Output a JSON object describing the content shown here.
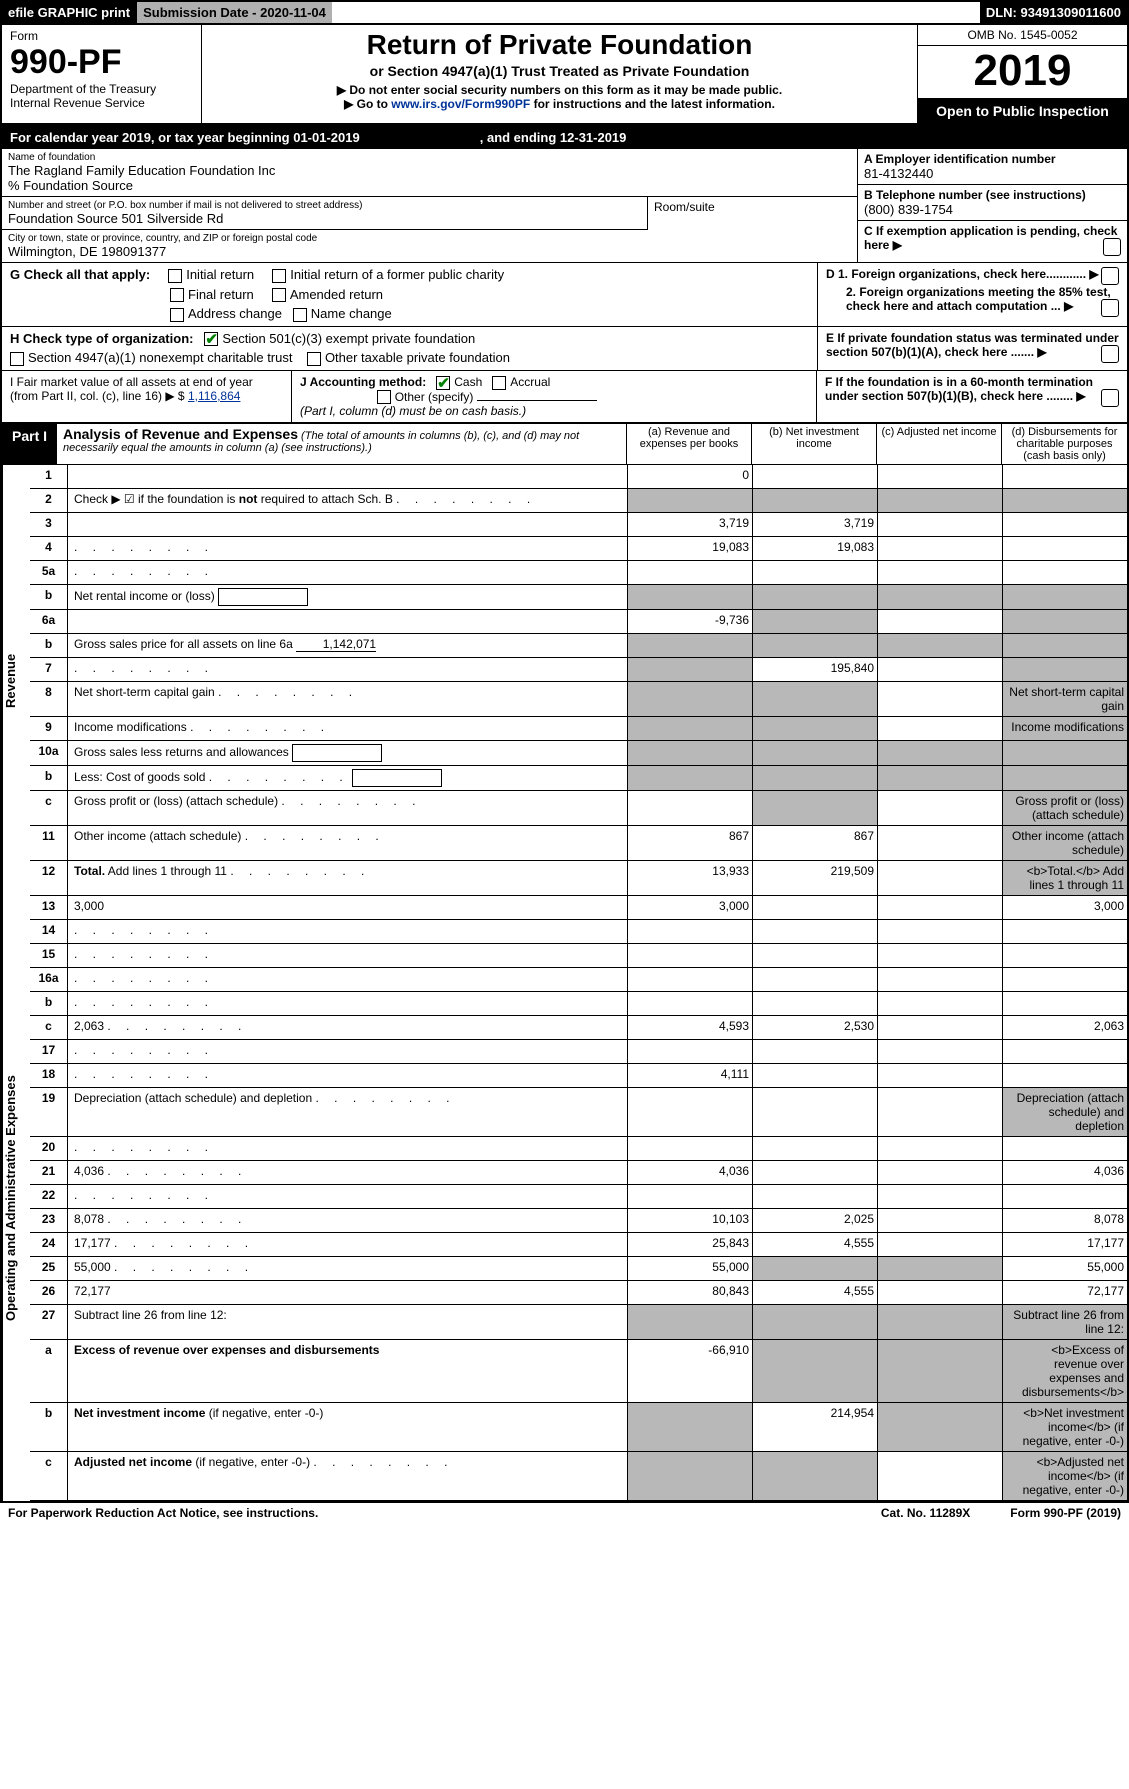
{
  "top": {
    "efile": "efile GRAPHIC print",
    "subdate": "Submission Date - 2020-11-04",
    "dln": "DLN: 93491309011600"
  },
  "hdr": {
    "form": "Form",
    "formno": "990-PF",
    "dept": "Department of the Treasury",
    "irs": "Internal Revenue Service",
    "title": "Return of Private Foundation",
    "sub": "or Section 4947(a)(1) Trust Treated as Private Foundation",
    "note1": "▶ Do not enter social security numbers on this form as it may be made public.",
    "note2": "▶ Go to ",
    "link": "www.irs.gov/Form990PF",
    "note2b": " for instructions and the latest information.",
    "omb": "OMB No. 1545-0052",
    "year": "2019",
    "open": "Open to Public Inspection"
  },
  "cal": {
    "a": "For calendar year 2019, or tax year beginning 01-01-2019",
    "b": ", and ending 12-31-2019"
  },
  "info": {
    "name_lbl": "Name of foundation",
    "name": "The Ragland Family Education Foundation Inc",
    "pct": "% Foundation Source",
    "addr_lbl": "Number and street (or P.O. box number if mail is not delivered to street address)",
    "addr": "Foundation Source 501 Silverside Rd",
    "room": "Room/suite",
    "city_lbl": "City or town, state or province, country, and ZIP or foreign postal code",
    "city": "Wilmington, DE  198091377",
    "a_lbl": "A Employer identification number",
    "a_val": "81-4132440",
    "b_lbl": "B Telephone number (see instructions)",
    "b_val": "(800) 839-1754",
    "c_lbl": "C If exemption application is pending, check here",
    "d1": "D 1. Foreign organizations, check here............",
    "d2": "2. Foreign organizations meeting the 85% test, check here and attach computation ...",
    "e": "E  If private foundation status was terminated under section 507(b)(1)(A), check here .......",
    "f": "F  If the foundation is in a 60-month termination under section 507(b)(1)(B), check here ........"
  },
  "g": {
    "lbl": "G Check all that apply:",
    "o1": "Initial return",
    "o2": "Initial return of a former public charity",
    "o3": "Final return",
    "o4": "Amended return",
    "o5": "Address change",
    "o6": "Name change"
  },
  "h": {
    "lbl": "H Check type of organization:",
    "o1": "Section 501(c)(3) exempt private foundation",
    "o2": "Section 4947(a)(1) nonexempt charitable trust",
    "o3": "Other taxable private foundation"
  },
  "i": {
    "lbl": "I Fair market value of all assets at end of year (from Part II, col. (c), line 16) ▶ $",
    "val": "1,116,864"
  },
  "j": {
    "lbl": "J Accounting method:",
    "cash": "Cash",
    "acc": "Accrual",
    "other": "Other (specify)",
    "note": "(Part I, column (d) must be on cash basis.)"
  },
  "p1": {
    "lbl": "Part I",
    "t": "Analysis of Revenue and Expenses",
    "sub": " (The total of amounts in columns (b), (c), and (d) may not necessarily equal the amounts in column (a) (see instructions).)",
    "ca": "(a)   Revenue and expenses per books",
    "cb": "(b)   Net investment income",
    "cc": "(c)  Adjusted net income",
    "cd": "(d)  Disbursements for charitable purposes (cash basis only)"
  },
  "side": {
    "rev": "Revenue",
    "exp": "Operating and Administrative Expenses"
  },
  "rows_rev": [
    {
      "n": "1",
      "d": "",
      "a": "0",
      "b": "",
      "c": ""
    },
    {
      "n": "2",
      "d": "Check ▶ ☑ if the foundation is <b>not</b> required to attach Sch. B",
      "dots": true,
      "nocol": true
    },
    {
      "n": "3",
      "d": "",
      "a": "3,719",
      "b": "3,719",
      "c": ""
    },
    {
      "n": "4",
      "d": "",
      "dots": true,
      "a": "19,083",
      "b": "19,083",
      "c": ""
    },
    {
      "n": "5a",
      "d": "",
      "dots": true,
      "a": "",
      "b": "",
      "c": ""
    },
    {
      "n": "b",
      "d": "Net rental income or (loss)",
      "box": true,
      "nocol": true
    },
    {
      "n": "6a",
      "d": "",
      "a": "-9,736",
      "b": "",
      "c": "",
      "bshade": true,
      "dshade": true
    },
    {
      "n": "b",
      "d": "Gross sales price for all assets on line 6a",
      "boxval": "1,142,071",
      "nocol": true
    },
    {
      "n": "7",
      "d": "",
      "dots": true,
      "ashade": true,
      "b": "195,840",
      "c": "",
      "dshade": true
    },
    {
      "n": "8",
      "d": "Net short-term capital gain",
      "dots": true,
      "ashade": true,
      "bshade": true,
      "c": "",
      "dshade": true
    },
    {
      "n": "9",
      "d": "Income modifications",
      "dots": true,
      "ashade": true,
      "bshade": true,
      "c": "",
      "dshade": true
    },
    {
      "n": "10a",
      "d": "Gross sales less returns and allowances",
      "box": true,
      "nocol": true
    },
    {
      "n": "b",
      "d": "Less: Cost of goods sold",
      "dots": true,
      "box": true,
      "nocol": true
    },
    {
      "n": "c",
      "d": "Gross profit or (loss) (attach schedule)",
      "dots": true,
      "a": "",
      "bshade": true,
      "c": "",
      "dshade": true
    },
    {
      "n": "11",
      "d": "Other income (attach schedule)",
      "dots": true,
      "a": "867",
      "b": "867",
      "c": "",
      "dshade": true
    },
    {
      "n": "12",
      "d": "<b>Total.</b> Add lines 1 through 11",
      "dots": true,
      "a": "13,933",
      "b": "219,509",
      "c": "",
      "dshade": true
    }
  ],
  "rows_exp": [
    {
      "n": "13",
      "d": "3,000",
      "a": "3,000",
      "b": "",
      "c": ""
    },
    {
      "n": "14",
      "d": "",
      "dots": true,
      "a": "",
      "b": "",
      "c": ""
    },
    {
      "n": "15",
      "d": "",
      "dots": true,
      "a": "",
      "b": "",
      "c": ""
    },
    {
      "n": "16a",
      "d": "",
      "dots": true,
      "a": "",
      "b": "",
      "c": ""
    },
    {
      "n": "b",
      "d": "",
      "dots": true,
      "a": "",
      "b": "",
      "c": ""
    },
    {
      "n": "c",
      "d": "2,063",
      "dots": true,
      "a": "4,593",
      "b": "2,530",
      "c": ""
    },
    {
      "n": "17",
      "d": "",
      "dots": true,
      "a": "",
      "b": "",
      "c": ""
    },
    {
      "n": "18",
      "d": "",
      "dots": true,
      "a": "4,111",
      "b": "",
      "c": ""
    },
    {
      "n": "19",
      "d": "Depreciation (attach schedule) and depletion",
      "dots": true,
      "a": "",
      "b": "",
      "c": "",
      "dshade": true
    },
    {
      "n": "20",
      "d": "",
      "dots": true,
      "a": "",
      "b": "",
      "c": ""
    },
    {
      "n": "21",
      "d": "4,036",
      "dots": true,
      "a": "4,036",
      "b": "",
      "c": ""
    },
    {
      "n": "22",
      "d": "",
      "dots": true,
      "a": "",
      "b": "",
      "c": ""
    },
    {
      "n": "23",
      "d": "8,078",
      "dots": true,
      "a": "10,103",
      "b": "2,025",
      "c": ""
    },
    {
      "n": "24",
      "d": "17,177",
      "dots": true,
      "a": "25,843",
      "b": "4,555",
      "c": ""
    },
    {
      "n": "25",
      "d": "55,000",
      "dots": true,
      "a": "55,000",
      "bshade": true,
      "cshade": true
    },
    {
      "n": "26",
      "d": "72,177",
      "a": "80,843",
      "b": "4,555",
      "c": ""
    },
    {
      "n": "27",
      "d": "Subtract line 26 from line 12:",
      "ashade": true,
      "bshade": true,
      "cshade": true,
      "dshade": true
    },
    {
      "n": "a",
      "d": "<b>Excess of revenue over expenses and disbursements</b>",
      "a": "-66,910",
      "bshade": true,
      "cshade": true,
      "dshade": true
    },
    {
      "n": "b",
      "d": "<b>Net investment income</b> (if negative, enter -0-)",
      "ashade": true,
      "b": "214,954",
      "cshade": true,
      "dshade": true
    },
    {
      "n": "c",
      "d": "<b>Adjusted net income</b> (if negative, enter -0-)",
      "dots": true,
      "ashade": true,
      "bshade": true,
      "c": "",
      "dshade": true
    }
  ],
  "footer": {
    "a": "For Paperwork Reduction Act Notice, see instructions.",
    "b": "Cat. No. 11289X",
    "c": "Form 990-PF (2019)"
  }
}
